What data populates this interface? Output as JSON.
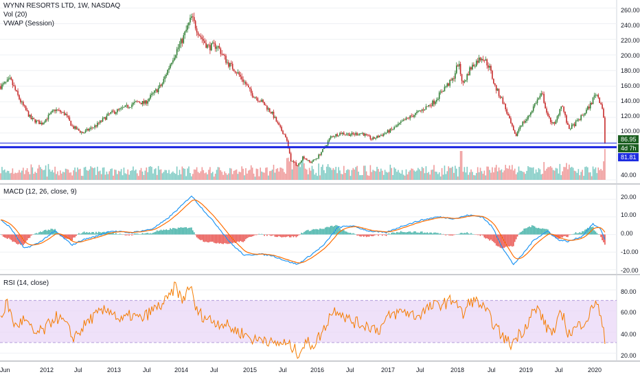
{
  "header": {
    "symbol_line": "WYNN RESORTS LTD, 1W, NASDAQ",
    "volume_label": "Vol (20)",
    "vwap_label": "VWAP (Session)"
  },
  "colors": {
    "up": "#26a69a",
    "up_candle": "#2e7d32",
    "down": "#e53935",
    "down_candle": "#c62828",
    "support_line": "#1a24e0",
    "macd_line": "#2196f3",
    "signal_line": "#ff6d00",
    "rsi_line": "#f57c00",
    "rsi_band": "#e9d7f7",
    "price_tag_green": "#1b5e20",
    "price_tag_blue": "#1e2de0",
    "grid": "#eef0f4",
    "axis_text": "#131722"
  },
  "price_axis": {
    "ticks": [
      "260.00",
      "240.00",
      "220.00",
      "200.00",
      "180.00",
      "160.00",
      "140.00",
      "120.00",
      "100.00",
      "40.00"
    ]
  },
  "price_tags": {
    "last_price": "86.95",
    "countdown": "4d 7h",
    "support_price": "81.81"
  },
  "macd_panel": {
    "label": "MACD (12, 26, close, 9)",
    "ticks": [
      "20.00",
      "10.00",
      "0.00",
      "-10.00",
      "-20.00"
    ]
  },
  "rsi_panel": {
    "label": "RSI (14, close)",
    "ticks": [
      "80.00",
      "60.00",
      "40.00",
      "20.00"
    ]
  },
  "time_axis": {
    "labels": [
      "Jun",
      "2012",
      "Jul",
      "2013",
      "Jul",
      "2014",
      "Jul",
      "2015",
      "Jul",
      "2016",
      "Jul",
      "2017",
      "Jul",
      "2018",
      "Jul",
      "2019",
      "Jul",
      "2020"
    ]
  },
  "chart_data": {
    "type": "candlestick",
    "title": "WYNN RESORTS LTD, 1W, NASDAQ",
    "price_range": [
      40,
      265
    ],
    "support_level": 81.81,
    "last_close": 86.95,
    "price_keypoints": [
      [
        2011.42,
        160
      ],
      [
        2011.55,
        168
      ],
      [
        2011.7,
        140
      ],
      [
        2011.85,
        118
      ],
      [
        2012.0,
        112
      ],
      [
        2012.2,
        130
      ],
      [
        2012.35,
        124
      ],
      [
        2012.45,
        108
      ],
      [
        2012.6,
        100
      ],
      [
        2012.8,
        110
      ],
      [
        2013.0,
        125
      ],
      [
        2013.2,
        132
      ],
      [
        2013.4,
        140
      ],
      [
        2013.5,
        138
      ],
      [
        2013.6,
        148
      ],
      [
        2013.75,
        162
      ],
      [
        2013.9,
        195
      ],
      [
        2014.05,
        220
      ],
      [
        2014.18,
        248
      ],
      [
        2014.3,
        225
      ],
      [
        2014.42,
        210
      ],
      [
        2014.55,
        212
      ],
      [
        2014.7,
        190
      ],
      [
        2014.82,
        180
      ],
      [
        2014.95,
        165
      ],
      [
        2015.05,
        150
      ],
      [
        2015.2,
        140
      ],
      [
        2015.35,
        125
      ],
      [
        2015.45,
        108
      ],
      [
        2015.55,
        95
      ],
      [
        2015.62,
        65
      ],
      [
        2015.72,
        58
      ],
      [
        2015.8,
        70
      ],
      [
        2015.9,
        62
      ],
      [
        2016.0,
        68
      ],
      [
        2016.1,
        80
      ],
      [
        2016.2,
        95
      ],
      [
        2016.35,
        100
      ],
      [
        2016.5,
        98
      ],
      [
        2016.65,
        100
      ],
      [
        2016.8,
        92
      ],
      [
        2016.95,
        98
      ],
      [
        2017.1,
        105
      ],
      [
        2017.3,
        118
      ],
      [
        2017.5,
        128
      ],
      [
        2017.7,
        140
      ],
      [
        2017.85,
        158
      ],
      [
        2017.97,
        168
      ],
      [
        2018.05,
        190
      ],
      [
        2018.12,
        162
      ],
      [
        2018.22,
        182
      ],
      [
        2018.32,
        192
      ],
      [
        2018.4,
        198
      ],
      [
        2018.5,
        185
      ],
      [
        2018.58,
        160
      ],
      [
        2018.7,
        140
      ],
      [
        2018.8,
        115
      ],
      [
        2018.88,
        95
      ],
      [
        2018.95,
        110
      ],
      [
        2019.05,
        118
      ],
      [
        2019.18,
        140
      ],
      [
        2019.27,
        150
      ],
      [
        2019.35,
        120
      ],
      [
        2019.45,
        110
      ],
      [
        2019.55,
        138
      ],
      [
        2019.65,
        105
      ],
      [
        2019.75,
        112
      ],
      [
        2019.88,
        125
      ],
      [
        2019.98,
        138
      ],
      [
        2020.05,
        152
      ],
      [
        2020.12,
        138
      ],
      [
        2020.15,
        130
      ],
      [
        2020.17,
        110
      ],
      [
        2020.18,
        86.95
      ]
    ],
    "macd_range": [
      -22,
      24
    ],
    "macd_keypoints": [
      [
        2011.42,
        8
      ],
      [
        2011.55,
        4
      ],
      [
        2011.75,
        -8
      ],
      [
        2011.95,
        -5
      ],
      [
        2012.2,
        2
      ],
      [
        2012.45,
        -6
      ],
      [
        2012.6,
        -3
      ],
      [
        2012.8,
        -1
      ],
      [
        2013.0,
        2
      ],
      [
        2013.3,
        1
      ],
      [
        2013.6,
        3
      ],
      [
        2013.8,
        8
      ],
      [
        2014.0,
        15
      ],
      [
        2014.18,
        22
      ],
      [
        2014.35,
        14
      ],
      [
        2014.55,
        5
      ],
      [
        2014.75,
        -5
      ],
      [
        2014.95,
        -12
      ],
      [
        2015.15,
        -11
      ],
      [
        2015.35,
        -12
      ],
      [
        2015.55,
        -15
      ],
      [
        2015.72,
        -17
      ],
      [
        2015.9,
        -12
      ],
      [
        2016.1,
        -6
      ],
      [
        2016.3,
        4
      ],
      [
        2016.5,
        5
      ],
      [
        2016.75,
        2
      ],
      [
        2017.0,
        1
      ],
      [
        2017.25,
        5
      ],
      [
        2017.5,
        8
      ],
      [
        2017.75,
        10
      ],
      [
        2018.0,
        9
      ],
      [
        2018.2,
        11
      ],
      [
        2018.4,
        10
      ],
      [
        2018.55,
        4
      ],
      [
        2018.7,
        -8
      ],
      [
        2018.85,
        -17
      ],
      [
        2018.95,
        -13
      ],
      [
        2019.15,
        -3
      ],
      [
        2019.35,
        2
      ],
      [
        2019.5,
        -3
      ],
      [
        2019.65,
        -4
      ],
      [
        2019.85,
        -1
      ],
      [
        2020.0,
        6
      ],
      [
        2020.12,
        3
      ],
      [
        2020.18,
        -3
      ]
    ],
    "rsi_range": [
      15,
      88
    ],
    "rsi_band": [
      30,
      70
    ],
    "rsi_keypoints": [
      [
        2011.42,
        55
      ],
      [
        2011.5,
        68
      ],
      [
        2011.62,
        45
      ],
      [
        2011.75,
        52
      ],
      [
        2011.9,
        38
      ],
      [
        2012.05,
        42
      ],
      [
        2012.2,
        55
      ],
      [
        2012.35,
        48
      ],
      [
        2012.45,
        35
      ],
      [
        2012.55,
        40
      ],
      [
        2012.7,
        52
      ],
      [
        2012.85,
        58
      ],
      [
        2013.0,
        62
      ],
      [
        2013.15,
        50
      ],
      [
        2013.3,
        56
      ],
      [
        2013.45,
        52
      ],
      [
        2013.6,
        60
      ],
      [
        2013.75,
        66
      ],
      [
        2013.85,
        72
      ],
      [
        2013.95,
        84
      ],
      [
        2014.05,
        68
      ],
      [
        2014.15,
        86
      ],
      [
        2014.25,
        60
      ],
      [
        2014.35,
        55
      ],
      [
        2014.5,
        50
      ],
      [
        2014.65,
        48
      ],
      [
        2014.8,
        42
      ],
      [
        2014.95,
        38
      ],
      [
        2015.1,
        32
      ],
      [
        2015.25,
        35
      ],
      [
        2015.35,
        28
      ],
      [
        2015.5,
        30
      ],
      [
        2015.65,
        25
      ],
      [
        2015.72,
        20
      ],
      [
        2015.85,
        30
      ],
      [
        2015.95,
        28
      ],
      [
        2016.1,
        42
      ],
      [
        2016.2,
        58
      ],
      [
        2016.3,
        62
      ],
      [
        2016.45,
        52
      ],
      [
        2016.6,
        48
      ],
      [
        2016.75,
        46
      ],
      [
        2016.9,
        42
      ],
      [
        2017.05,
        55
      ],
      [
        2017.25,
        60
      ],
      [
        2017.45,
        55
      ],
      [
        2017.6,
        62
      ],
      [
        2017.75,
        66
      ],
      [
        2017.9,
        68
      ],
      [
        2018.0,
        72
      ],
      [
        2018.12,
        55
      ],
      [
        2018.22,
        70
      ],
      [
        2018.35,
        68
      ],
      [
        2018.5,
        55
      ],
      [
        2018.62,
        42
      ],
      [
        2018.72,
        34
      ],
      [
        2018.82,
        28
      ],
      [
        2018.9,
        36
      ],
      [
        2019.0,
        42
      ],
      [
        2019.12,
        58
      ],
      [
        2019.22,
        62
      ],
      [
        2019.32,
        45
      ],
      [
        2019.45,
        40
      ],
      [
        2019.55,
        60
      ],
      [
        2019.65,
        38
      ],
      [
        2019.8,
        46
      ],
      [
        2019.95,
        55
      ],
      [
        2020.05,
        72
      ],
      [
        2020.12,
        52
      ],
      [
        2020.18,
        32
      ]
    ]
  }
}
